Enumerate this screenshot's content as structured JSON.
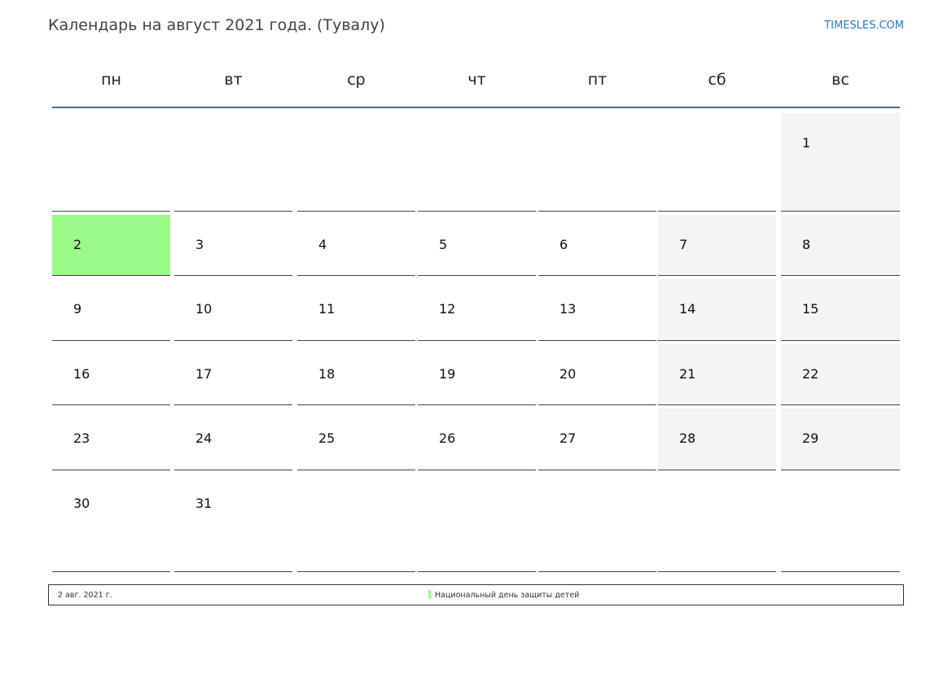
{
  "title": "Календарь на август 2021 года. (Тувалу)",
  "brand": "TIMESLES.COM",
  "weekdays": [
    "пн",
    "вт",
    "ср",
    "чт",
    "пт",
    "сб",
    "вс"
  ],
  "weeks": [
    [
      "",
      "",
      "",
      "",
      "",
      "",
      "1"
    ],
    [
      "2",
      "3",
      "4",
      "5",
      "6",
      "7",
      "8"
    ],
    [
      "9",
      "10",
      "11",
      "12",
      "13",
      "14",
      "15"
    ],
    [
      "16",
      "17",
      "18",
      "19",
      "20",
      "21",
      "22"
    ],
    [
      "23",
      "24",
      "25",
      "26",
      "27",
      "28",
      "29"
    ],
    [
      "30",
      "31",
      "",
      "",
      "",
      "",
      ""
    ]
  ],
  "holiday_day": "2",
  "colors": {
    "holiday": "#9afa88",
    "weekend": "#f4f4f4",
    "accent": "#4a6a94",
    "brand": "#2a7ac0"
  },
  "legend": {
    "date": "2 авг. 2021 г.",
    "name": "Национальный день защиты детей"
  }
}
